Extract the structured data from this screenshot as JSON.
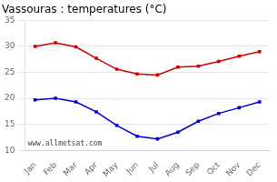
{
  "chart_data": {
    "type": "line",
    "title": "Vassouras : temperatures (°C)",
    "categories": [
      "Jan",
      "Feb",
      "Mar",
      "Apr",
      "May",
      "Jun",
      "Jul",
      "Aug",
      "Sep",
      "Oct",
      "Nov",
      "Dec"
    ],
    "series": [
      {
        "color": "#cc0000",
        "values": [
          30.0,
          30.7,
          29.9,
          27.7,
          25.6,
          24.7,
          24.5,
          26.0,
          26.2,
          27.1,
          28.1,
          29.0
        ]
      },
      {
        "color": "#0000cc",
        "values": [
          19.7,
          20.0,
          19.3,
          17.4,
          14.8,
          12.7,
          12.2,
          13.5,
          15.6,
          17.1,
          18.2,
          19.3
        ]
      }
    ],
    "marker": "square",
    "ylim": [
      10,
      35
    ],
    "yticks": [
      10,
      15,
      20,
      25,
      30,
      35
    ],
    "grid": true,
    "annotation": "www.allmetsat.com"
  }
}
